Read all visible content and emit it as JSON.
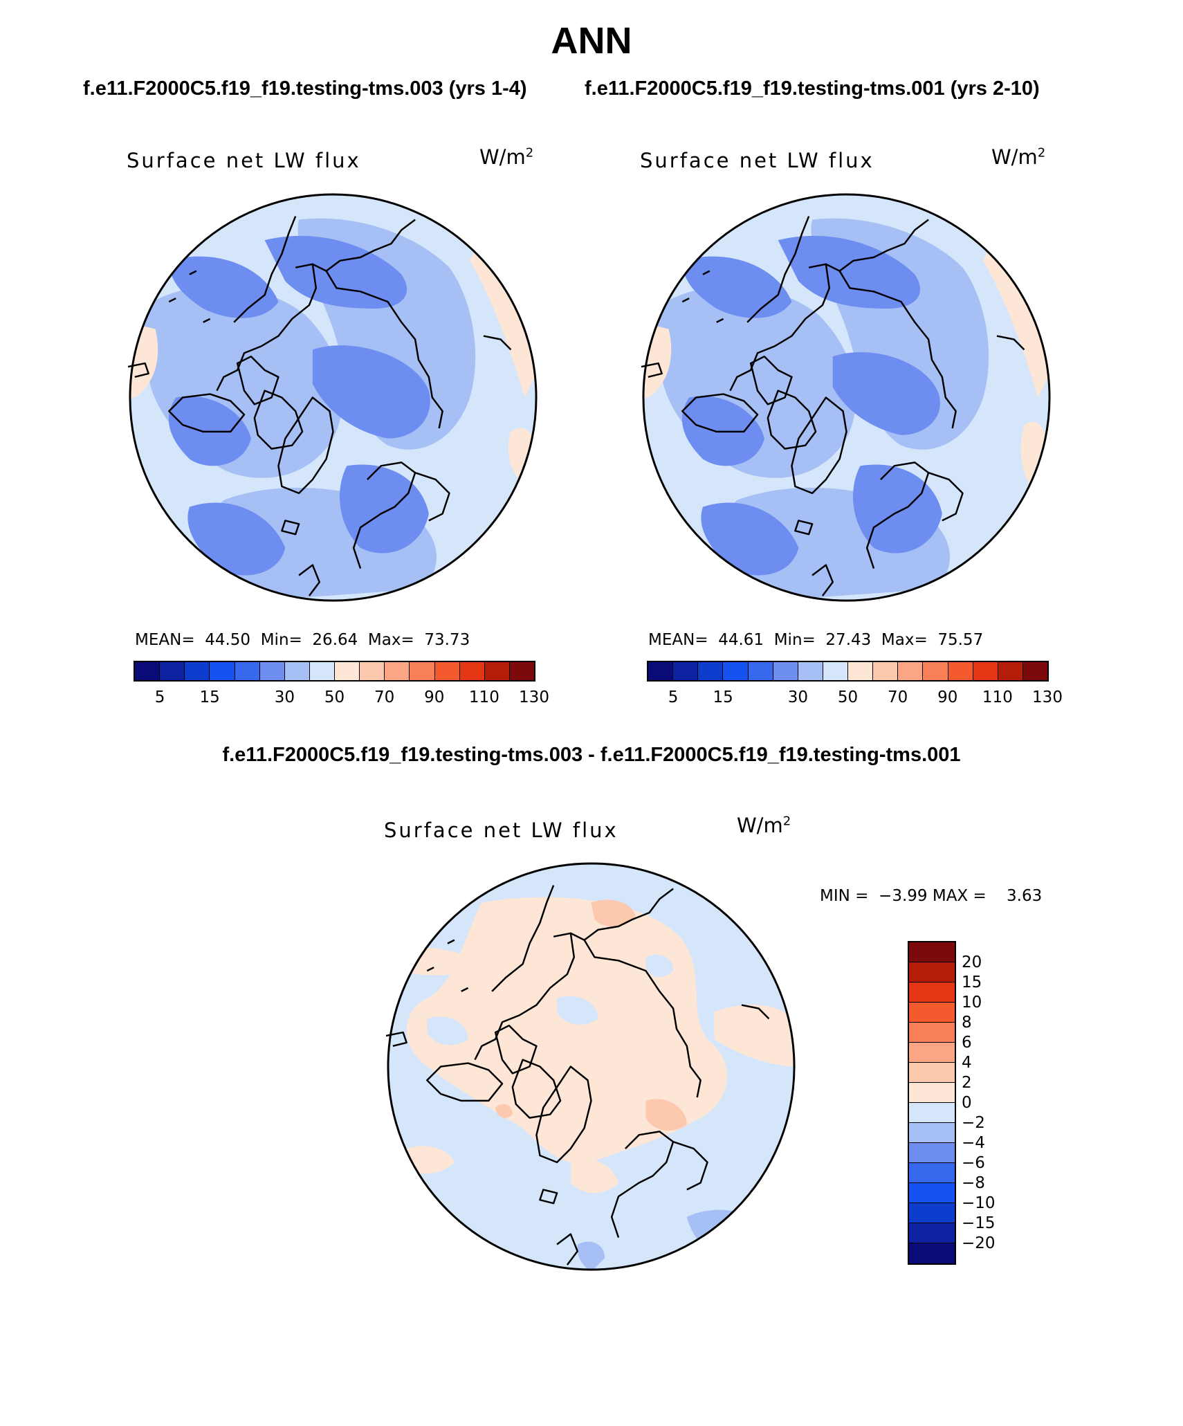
{
  "title": "ANN",
  "subtitle_left": "f.e11.F2000C5.f19_f19.testing-tms.003 (yrs 1-4)",
  "subtitle_right": "f.e11.F2000C5.f19_f19.testing-tms.001 (yrs 2-10)",
  "diff_title": "f.e11.F2000C5.f19_f19.testing-tms.003 - f.e11.F2000C5.f19_f19.testing-tms.001",
  "chart_data": [
    {
      "type": "map",
      "projection": "north polar stereographic",
      "title": "Surface net LW flux",
      "units_base": "W/m",
      "units_exp": "2",
      "stats": {
        "mean_label": "MEAN=",
        "mean": "44.50",
        "min_label": "Min=",
        "min": "26.64",
        "max_label": "Max=",
        "max": "73.73"
      },
      "colorbar": {
        "levels": [
          5,
          10,
          15,
          20,
          25,
          30,
          40,
          50,
          60,
          70,
          80,
          90,
          100,
          110,
          120,
          130
        ],
        "tick_labels": [
          "5",
          "15",
          "30",
          "50",
          "70",
          "90",
          "110",
          "130"
        ],
        "colors": [
          "#0a0a78",
          "#0c22a0",
          "#0e3ccd",
          "#1652f0",
          "#3868ee",
          "#6e8df0",
          "#a6bff4",
          "#d5e6fb",
          "#fde6d6",
          "#fcc8ae",
          "#fba585",
          "#f88058",
          "#f35a2e",
          "#e33612",
          "#b51d0b",
          "#7d0a0a"
        ]
      }
    },
    {
      "type": "map",
      "projection": "north polar stereographic",
      "title": "Surface net LW flux",
      "units_base": "W/m",
      "units_exp": "2",
      "stats": {
        "mean_label": "MEAN=",
        "mean": "44.61",
        "min_label": "Min=",
        "min": "27.43",
        "max_label": "Max=",
        "max": "75.57"
      },
      "colorbar": {
        "levels": [
          5,
          10,
          15,
          20,
          25,
          30,
          40,
          50,
          60,
          70,
          80,
          90,
          100,
          110,
          120,
          130
        ],
        "tick_labels": [
          "5",
          "15",
          "30",
          "50",
          "70",
          "90",
          "110",
          "130"
        ],
        "colors": [
          "#0a0a78",
          "#0c22a0",
          "#0e3ccd",
          "#1652f0",
          "#3868ee",
          "#6e8df0",
          "#a6bff4",
          "#d5e6fb",
          "#fde6d6",
          "#fcc8ae",
          "#fba585",
          "#f88058",
          "#f35a2e",
          "#e33612",
          "#b51d0b",
          "#7d0a0a"
        ]
      }
    },
    {
      "type": "map",
      "projection": "north polar stereographic",
      "title": "Surface net LW flux",
      "units_base": "W/m",
      "units_exp": "2",
      "stats": {
        "min_label": "MIN =",
        "min": "−3.99",
        "max_label": "MAX =",
        "max": "3.63"
      },
      "colorbar": {
        "tick_labels": [
          "20",
          "15",
          "10",
          "8",
          "6",
          "4",
          "2",
          "0",
          "−2",
          "−4",
          "−6",
          "−8",
          "−10",
          "−15",
          "−20"
        ],
        "colors": [
          "#7d0a0a",
          "#b51d0b",
          "#e33612",
          "#f35a2e",
          "#f88058",
          "#fba585",
          "#fcc8ae",
          "#fde6d6",
          "#d5e6fb",
          "#a6bff4",
          "#6e8df0",
          "#3868ee",
          "#1652f0",
          "#0e3ccd",
          "#0c22a0",
          "#0a0a78"
        ]
      }
    }
  ]
}
